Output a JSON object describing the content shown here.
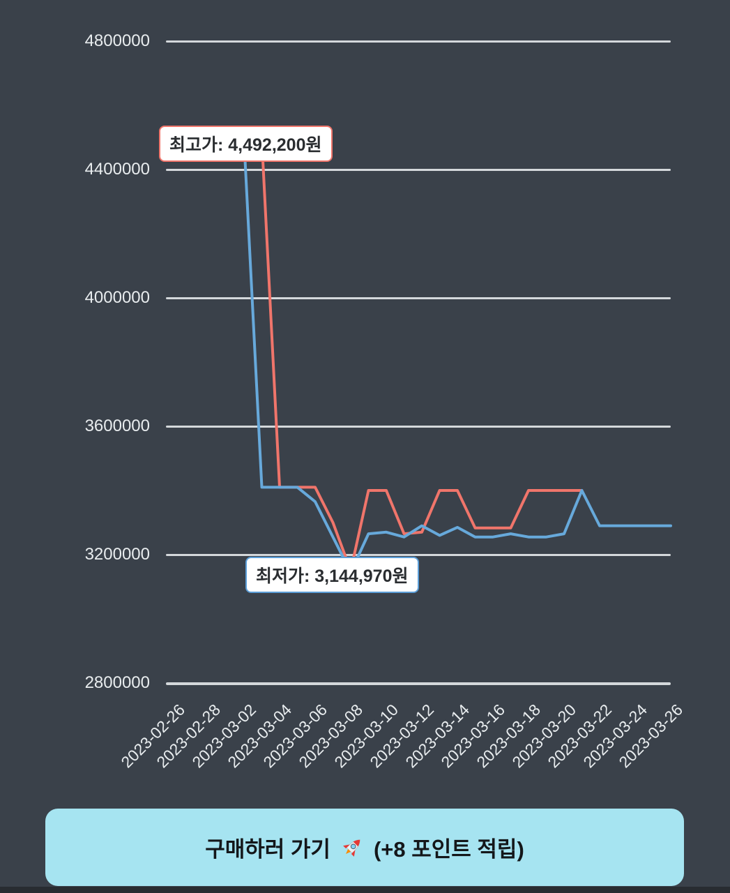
{
  "page": {
    "background": "#3a414a"
  },
  "chart_data": {
    "type": "line",
    "title": "",
    "xlabel": "",
    "ylabel": "",
    "ylim": [
      2800000,
      4800000
    ],
    "grid": true,
    "legend": "none",
    "y_ticks": [
      4800000,
      4400000,
      4000000,
      3600000,
      3200000,
      2800000
    ],
    "x": [
      "2023-02-26",
      "2023-02-27",
      "2023-02-28",
      "2023-03-01",
      "2023-03-02",
      "2023-03-03",
      "2023-03-04",
      "2023-03-05",
      "2023-03-06",
      "2023-03-07",
      "2023-03-08",
      "2023-03-09",
      "2023-03-10",
      "2023-03-11",
      "2023-03-12",
      "2023-03-13",
      "2023-03-14",
      "2023-03-15",
      "2023-03-16",
      "2023-03-17",
      "2023-03-18",
      "2023-03-19",
      "2023-03-20",
      "2023-03-21",
      "2023-03-22",
      "2023-03-23",
      "2023-03-24",
      "2023-03-25",
      "2023-03-26"
    ],
    "x_tick_labels": [
      "2023-02-26",
      "2023-02-28",
      "2023-03-02",
      "2023-03-04",
      "2023-03-06",
      "2023-03-08",
      "2023-03-10",
      "2023-03-12",
      "2023-03-14",
      "2023-03-16",
      "2023-03-18",
      "2023-03-20",
      "2023-03-22",
      "2023-03-24",
      "2023-03-26"
    ],
    "series": [
      {
        "name": "red_line",
        "color": "#f0756b",
        "values": [
          4492200,
          4492200,
          4492200,
          4492200,
          4492200,
          4492200,
          3410000,
          3410000,
          3410000,
          3300000,
          3150000,
          3400000,
          3400000,
          3265000,
          3270000,
          3400000,
          3400000,
          3283000,
          3283000,
          3283000,
          3400000,
          3400000,
          3400000,
          3400000,
          null,
          null,
          null,
          null,
          null
        ]
      },
      {
        "name": "blue_line",
        "color": "#67a9db",
        "values": [
          4492200,
          4492200,
          4492200,
          4492200,
          4492200,
          3410000,
          3410000,
          3410000,
          3365000,
          3255000,
          3144970,
          3265000,
          3270000,
          3255000,
          3290000,
          3260000,
          3285000,
          3255000,
          3255000,
          3265000,
          3255000,
          3255000,
          3265000,
          3400000,
          3290000,
          3290000,
          3290000,
          3290000,
          3290000
        ]
      }
    ],
    "annotations": [
      {
        "id": "highest-price",
        "text": "최고가: 4,492,200원",
        "value": 4492200,
        "border_color": "#f0756b"
      },
      {
        "id": "lowest-price",
        "text": "최저가: 3,144,970원",
        "value": 3144970,
        "border_color": "#5b9ed8"
      }
    ]
  },
  "buy_button": {
    "label_prefix": "구매하러 가기",
    "icon": "rocket-icon",
    "label_suffix": "(+8 포인트 적립)",
    "background": "#a6e4f1",
    "text_color": "#14171a"
  }
}
